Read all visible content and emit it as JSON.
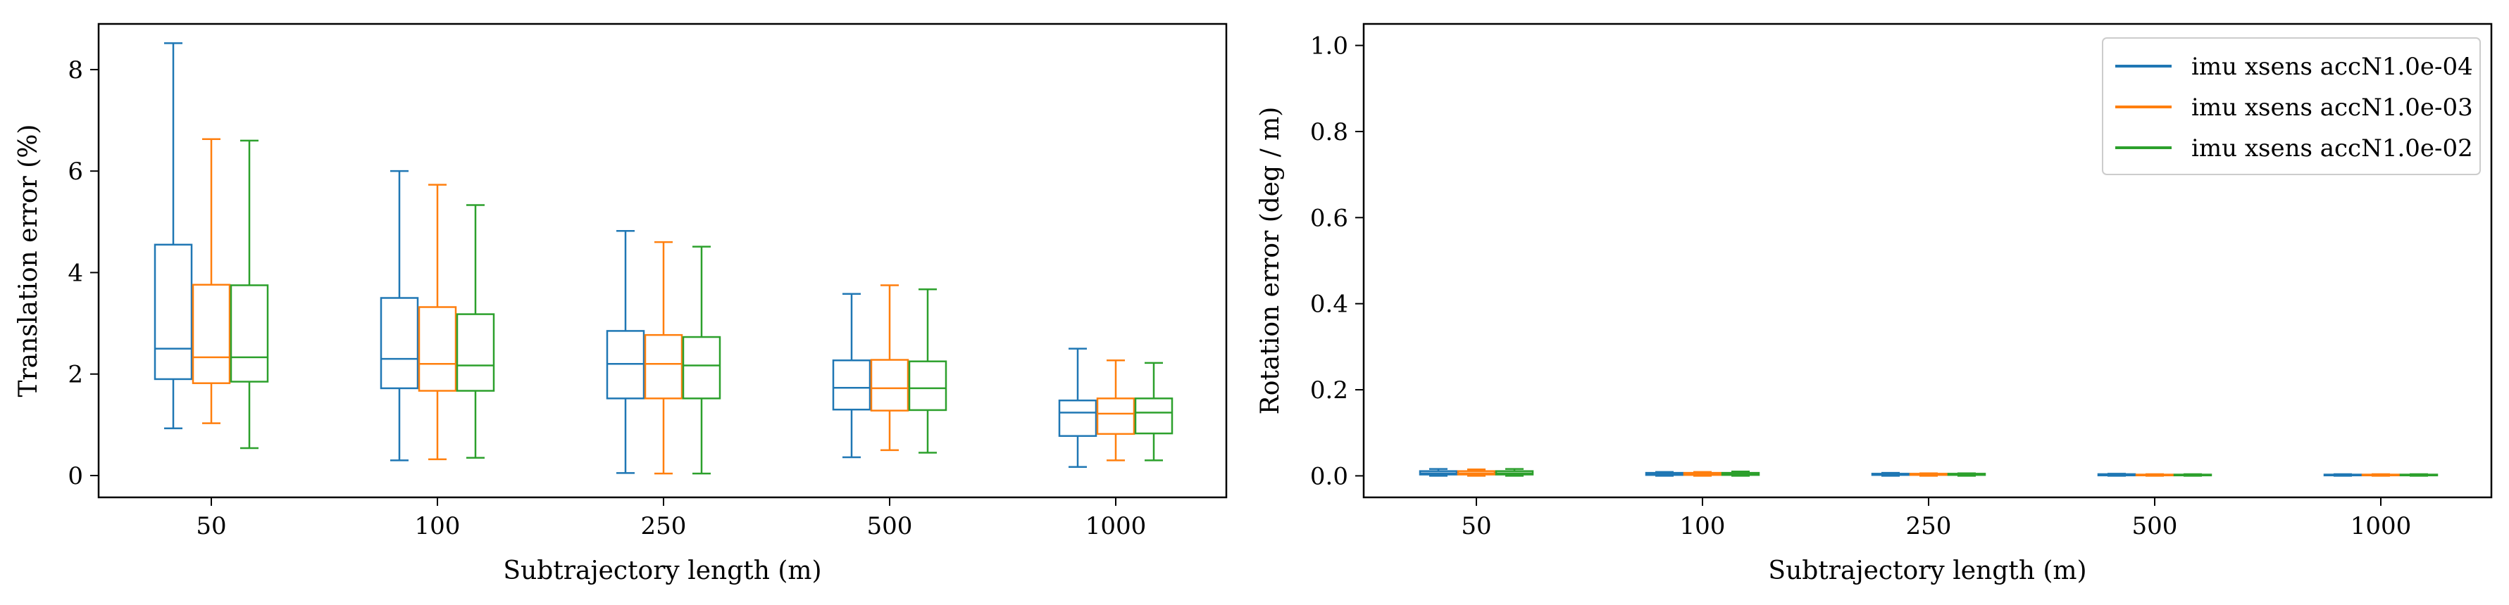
{
  "colors": {
    "series": [
      "#1f77b4",
      "#ff7f0e",
      "#2ca02c"
    ]
  },
  "chart_data": [
    {
      "type": "box",
      "xlabel": "Subtrajectory length (m)",
      "ylabel": "Translation error (%)",
      "categories": [
        "50",
        "100",
        "250",
        "500",
        "1000"
      ],
      "ylim": [
        -0.43,
        8.9
      ],
      "yticks": [
        "0",
        "2",
        "4",
        "6",
        "8"
      ],
      "legend": "none",
      "series": [
        {
          "color": "#1f77b4",
          "boxes": [
            {
              "whisker_low": 0.93,
              "q1": 1.9,
              "median": 2.5,
              "q3": 4.55,
              "whisker_high": 8.52
            },
            {
              "whisker_low": 0.3,
              "q1": 1.72,
              "median": 2.3,
              "q3": 3.5,
              "whisker_high": 6.0
            },
            {
              "whisker_low": 0.05,
              "q1": 1.52,
              "median": 2.2,
              "q3": 2.85,
              "whisker_high": 4.82
            },
            {
              "whisker_low": 0.36,
              "q1": 1.3,
              "median": 1.73,
              "q3": 2.27,
              "whisker_high": 3.58
            },
            {
              "whisker_low": 0.17,
              "q1": 0.78,
              "median": 1.24,
              "q3": 1.48,
              "whisker_high": 2.5
            }
          ]
        },
        {
          "color": "#ff7f0e",
          "boxes": [
            {
              "whisker_low": 1.03,
              "q1": 1.82,
              "median": 2.33,
              "q3": 3.76,
              "whisker_high": 6.63
            },
            {
              "whisker_low": 0.32,
              "q1": 1.67,
              "median": 2.2,
              "q3": 3.32,
              "whisker_high": 5.73
            },
            {
              "whisker_low": 0.04,
              "q1": 1.52,
              "median": 2.2,
              "q3": 2.77,
              "whisker_high": 4.6
            },
            {
              "whisker_low": 0.5,
              "q1": 1.28,
              "median": 1.72,
              "q3": 2.28,
              "whisker_high": 3.75
            },
            {
              "whisker_low": 0.3,
              "q1": 0.82,
              "median": 1.22,
              "q3": 1.52,
              "whisker_high": 2.27
            }
          ]
        },
        {
          "color": "#2ca02c",
          "boxes": [
            {
              "whisker_low": 0.54,
              "q1": 1.85,
              "median": 2.33,
              "q3": 3.75,
              "whisker_high": 6.6
            },
            {
              "whisker_low": 0.35,
              "q1": 1.67,
              "median": 2.17,
              "q3": 3.18,
              "whisker_high": 5.33
            },
            {
              "whisker_low": 0.04,
              "q1": 1.52,
              "median": 2.17,
              "q3": 2.73,
              "whisker_high": 4.51
            },
            {
              "whisker_low": 0.45,
              "q1": 1.29,
              "median": 1.72,
              "q3": 2.25,
              "whisker_high": 3.67
            },
            {
              "whisker_low": 0.3,
              "q1": 0.83,
              "median": 1.24,
              "q3": 1.52,
              "whisker_high": 2.22
            }
          ]
        }
      ]
    },
    {
      "type": "box",
      "xlabel": "Subtrajectory length (m)",
      "ylabel": "Rotation error (deg / m)",
      "categories": [
        "50",
        "100",
        "250",
        "500",
        "1000"
      ],
      "ylim": [
        -0.05,
        1.05
      ],
      "yticks": [
        "0.0",
        "0.2",
        "0.4",
        "0.6",
        "0.8",
        "1.0"
      ],
      "legend": "top-right",
      "series": [
        {
          "name": "imu xsens accN1.0e-04",
          "color": "#1f77b4",
          "boxes": [
            {
              "whisker_low": 0.0,
              "q1": 0.003,
              "median": 0.006,
              "q3": 0.011,
              "whisker_high": 0.016
            },
            {
              "whisker_low": 0.0,
              "q1": 0.002,
              "median": 0.004,
              "q3": 0.007,
              "whisker_high": 0.009
            },
            {
              "whisker_low": 0.0,
              "q1": 0.002,
              "median": 0.003,
              "q3": 0.005,
              "whisker_high": 0.007
            },
            {
              "whisker_low": 0.0,
              "q1": 0.001,
              "median": 0.002,
              "q3": 0.004,
              "whisker_high": 0.005
            },
            {
              "whisker_low": 0.0,
              "q1": 0.001,
              "median": 0.002,
              "q3": 0.003,
              "whisker_high": 0.004
            }
          ]
        },
        {
          "name": "imu xsens accN1.0e-03",
          "color": "#ff7f0e",
          "boxes": [
            {
              "whisker_low": 0.0,
              "q1": 0.003,
              "median": 0.006,
              "q3": 0.011,
              "whisker_high": 0.015
            },
            {
              "whisker_low": 0.0,
              "q1": 0.002,
              "median": 0.004,
              "q3": 0.007,
              "whisker_high": 0.009
            },
            {
              "whisker_low": 0.0,
              "q1": 0.002,
              "median": 0.003,
              "q3": 0.005,
              "whisker_high": 0.006
            },
            {
              "whisker_low": 0.0,
              "q1": 0.001,
              "median": 0.002,
              "q3": 0.003,
              "whisker_high": 0.004
            },
            {
              "whisker_low": 0.0,
              "q1": 0.001,
              "median": 0.002,
              "q3": 0.003,
              "whisker_high": 0.004
            }
          ]
        },
        {
          "name": "imu xsens accN1.0e-02",
          "color": "#2ca02c",
          "boxes": [
            {
              "whisker_low": 0.0,
              "q1": 0.003,
              "median": 0.006,
              "q3": 0.011,
              "whisker_high": 0.016
            },
            {
              "whisker_low": 0.0,
              "q1": 0.002,
              "median": 0.004,
              "q3": 0.007,
              "whisker_high": 0.01
            },
            {
              "whisker_low": 0.0,
              "q1": 0.002,
              "median": 0.003,
              "q3": 0.005,
              "whisker_high": 0.006
            },
            {
              "whisker_low": 0.0,
              "q1": 0.001,
              "median": 0.002,
              "q3": 0.003,
              "whisker_high": 0.004
            },
            {
              "whisker_low": 0.0,
              "q1": 0.001,
              "median": 0.002,
              "q3": 0.003,
              "whisker_high": 0.004
            }
          ]
        }
      ]
    }
  ]
}
